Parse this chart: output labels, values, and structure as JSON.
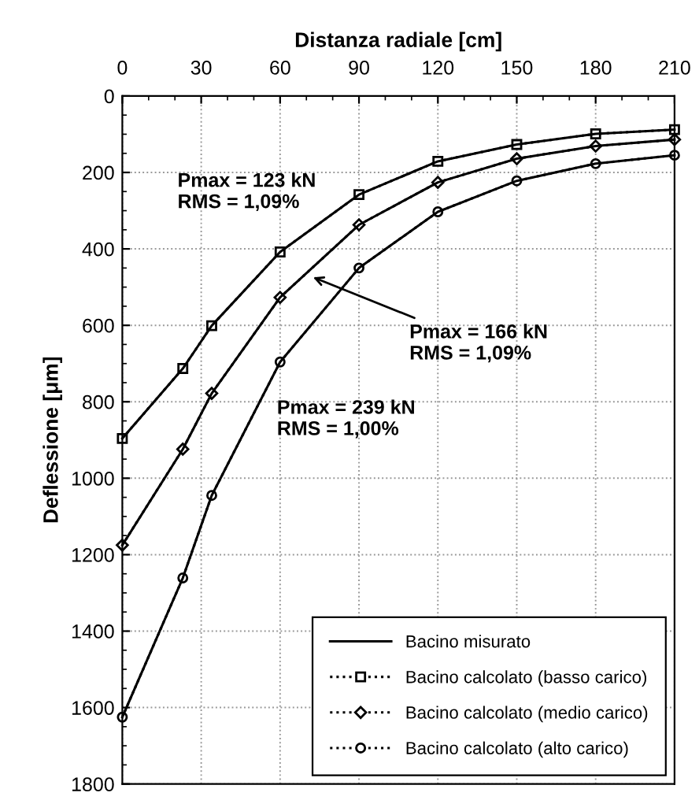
{
  "chart_data": {
    "type": "line",
    "xlabel": "Distanza radiale [cm]",
    "ylabel": "Deflessione [μm]",
    "xlim": [
      0,
      210
    ],
    "xticks": [
      0,
      30,
      60,
      90,
      120,
      150,
      180,
      210
    ],
    "ylim": [
      1800,
      0
    ],
    "yticks": [
      0,
      200,
      400,
      600,
      800,
      1000,
      1200,
      1400,
      1600,
      1800
    ],
    "grid": true,
    "legend": "bottom right",
    "x": [
      0,
      23,
      34,
      60,
      90,
      120,
      150,
      180,
      210
    ],
    "series": [
      {
        "name": "Bacino calcolato (basso carico)",
        "color": "#000000",
        "line_style": "dotted",
        "marker": "square",
        "values": [
          896,
          713,
          601,
          408,
          258,
          171,
          127,
          99,
          88
        ]
      },
      {
        "name": "Bacino calcolato (medio carico)",
        "color": "#000000",
        "line_style": "dotted",
        "marker": "diamond",
        "values": [
          1175,
          924,
          778,
          527,
          337,
          226,
          164,
          131,
          114
        ]
      },
      {
        "name": "Bacino calcolato (alto carico)",
        "color": "#000000",
        "line_style": "dotted",
        "marker": "circle",
        "values": [
          1625,
          1261,
          1045,
          696,
          450,
          303,
          222,
          177,
          155
        ]
      },
      {
        "name": "Bacino misurato",
        "color": "#000000",
        "line_style": "solid",
        "marker": "none",
        "values": [
          896,
          713,
          601,
          408,
          258,
          171,
          127,
          99,
          88
        ]
      },
      {
        "color": "#000000",
        "line_style": "solid",
        "marker": "none",
        "values": [
          1175,
          924,
          778,
          527,
          337,
          226,
          164,
          131,
          114
        ]
      },
      {
        "color": "#000000",
        "line_style": "solid",
        "marker": "none",
        "values": [
          1625,
          1261,
          1045,
          696,
          450,
          303,
          222,
          177,
          155
        ]
      }
    ],
    "annotations": [
      "Pmax = 123 kN\nRMS = 1,09%",
      {
        "text": "Pmax = 166 kN\nRMS = 1,09%",
        "x": 71,
        "y": 470
      },
      "Pmax = 239 kN\nRMS = 1,00%"
    ]
  }
}
